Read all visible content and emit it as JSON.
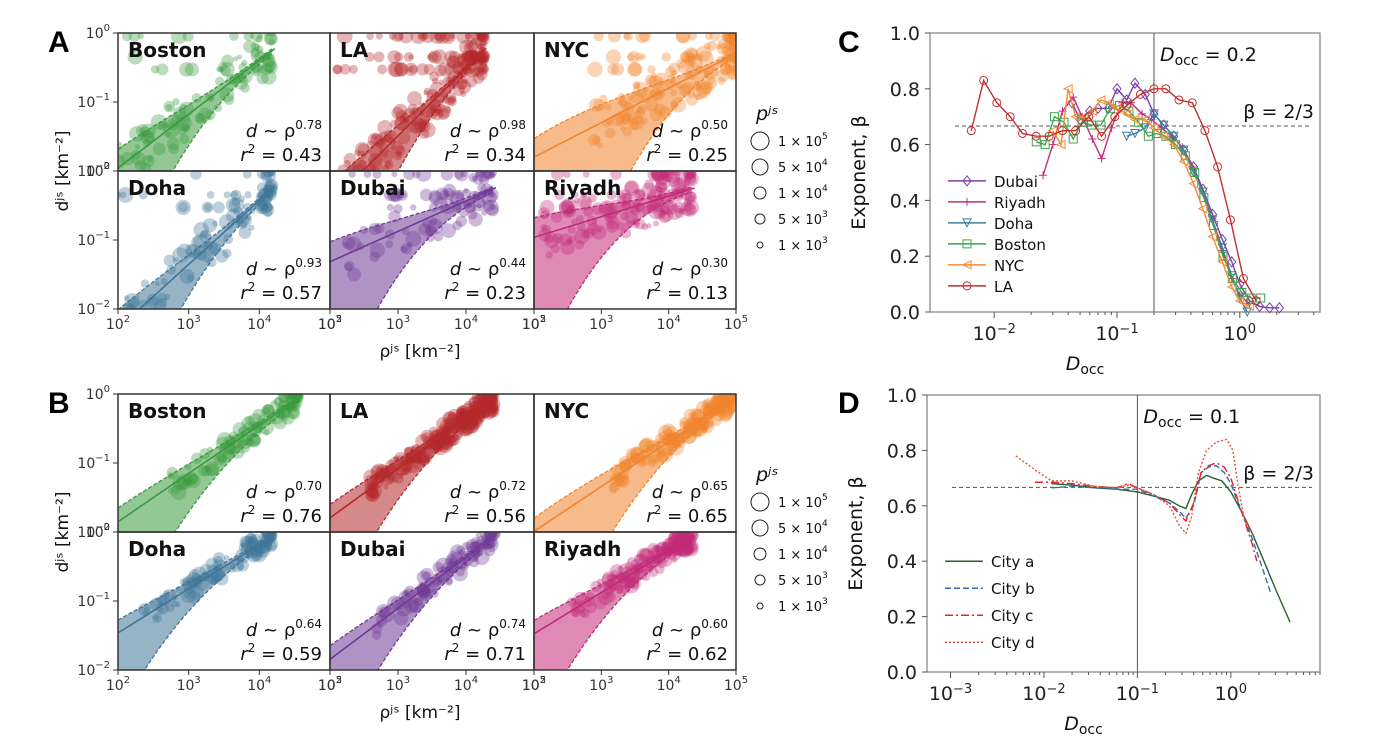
{
  "figure": {
    "panels": {
      "A": {
        "letter": "A"
      },
      "B": {
        "letter": "B"
      },
      "C": {
        "letter": "C"
      },
      "D": {
        "letter": "D"
      }
    }
  },
  "chart_data": [
    {
      "id": "A",
      "type": "scatter",
      "title": "",
      "xlabel": "ρ_j^S [km^-2]",
      "ylabel": "d_j^S [km^-2]",
      "xscale": "log",
      "yscale": "log",
      "xlim": [
        100,
        100000
      ],
      "ylim": [
        0.01,
        1
      ],
      "xticks": [
        "10^2",
        "10^3",
        "10^4",
        "10^5"
      ],
      "yticks": [
        "10^-2",
        "10^-1",
        "10^0"
      ],
      "size_legend": {
        "title": "p_j^S",
        "entries": [
          "1 × 10^5",
          "5 × 10^4",
          "1 × 10^4",
          "5 × 10^3",
          "1 × 10^3"
        ]
      },
      "subplots": [
        {
          "city": "Boston",
          "color": "#3a9a3e",
          "exponent": "0.78",
          "r2": "0.43",
          "xmax": 15000
        },
        {
          "city": "LA",
          "color": "#b5282b",
          "exponent": "0.98",
          "r2": "0.34",
          "xmax": 18000
        },
        {
          "city": "NYC",
          "color": "#f0842c",
          "exponent": "0.50",
          "r2": "0.25",
          "xmax": 120000
        },
        {
          "city": "Doha",
          "color": "#3f7698",
          "exponent": "0.93",
          "r2": "0.57",
          "xmax": 15000
        },
        {
          "city": "Dubai",
          "color": "#6f3a96",
          "exponent": "0.44",
          "r2": "0.23",
          "xmax": 25000
        },
        {
          "city": "Riyadh",
          "color": "#c22a79",
          "exponent": "0.30",
          "r2": "0.13",
          "xmax": 22000
        }
      ]
    },
    {
      "id": "B",
      "type": "scatter",
      "title": "",
      "xlabel": "ρ_j^S [km^-2]",
      "ylabel": "d_j^S [km^-2]",
      "xscale": "log",
      "yscale": "log",
      "xlim": [
        100,
        100000
      ],
      "ylim": [
        0.01,
        1
      ],
      "xticks": [
        "10^2",
        "10^3",
        "10^4",
        "10^5"
      ],
      "yticks": [
        "10^-2",
        "10^-1",
        "10^0"
      ],
      "size_legend": {
        "title": "p_j^S",
        "entries": [
          "1 × 10^5",
          "5 × 10^4",
          "1 × 10^4",
          "5 × 10^3",
          "1 × 10^3"
        ]
      },
      "subplots": [
        {
          "city": "Boston",
          "color": "#3a9a3e",
          "exponent": "0.70",
          "r2": "0.76",
          "xmax": 35000
        },
        {
          "city": "LA",
          "color": "#b5282b",
          "exponent": "0.72",
          "r2": "0.56",
          "xmax": 25000
        },
        {
          "city": "NYC",
          "color": "#f0842c",
          "exponent": "0.65",
          "r2": "0.65",
          "xmax": 90000
        },
        {
          "city": "Doha",
          "color": "#3f7698",
          "exponent": "0.64",
          "r2": "0.59",
          "xmax": 15000
        },
        {
          "city": "Dubai",
          "color": "#6f3a96",
          "exponent": "0.74",
          "r2": "0.71",
          "xmax": 25000
        },
        {
          "city": "Riyadh",
          "color": "#c22a79",
          "exponent": "0.60",
          "r2": "0.62",
          "xmax": 22000
        }
      ]
    },
    {
      "id": "C",
      "type": "line",
      "title": "",
      "xlabel": "D_occ",
      "ylabel": "Exponent, β",
      "xscale": "log",
      "xlim": [
        0.003,
        4.5
      ],
      "ylim": [
        0.0,
        1.0
      ],
      "xticks": [
        "10^-2",
        "10^-1",
        "10^0"
      ],
      "yticks": [
        "0.0",
        "0.2",
        "0.4",
        "0.6",
        "0.8",
        "1.0"
      ],
      "vline": {
        "x": 0.2,
        "label": "D_occ = 0.2"
      },
      "hline": {
        "y": 0.6667,
        "label": "β = 2/3"
      },
      "legend_position": "center-left",
      "series": [
        {
          "name": "Dubai",
          "color": "#7a3fa8",
          "marker": "diamond",
          "x": [
            0.043,
            0.05,
            0.06,
            0.07,
            0.085,
            0.1,
            0.12,
            0.14,
            0.17,
            0.2,
            0.24,
            0.29,
            0.35,
            0.42,
            0.5,
            0.6,
            0.72,
            0.86,
            1.0,
            1.2,
            1.45,
            1.75,
            2.1
          ],
          "y": [
            0.75,
            0.69,
            0.72,
            0.73,
            0.73,
            0.8,
            0.76,
            0.82,
            0.78,
            0.71,
            0.67,
            0.63,
            0.58,
            0.52,
            0.44,
            0.35,
            0.26,
            0.18,
            0.1,
            0.04,
            0.02,
            0.015,
            0.015
          ]
        },
        {
          "name": "Riyadh",
          "color": "#c2307a",
          "marker": "plus",
          "x": [
            0.025,
            0.03,
            0.036,
            0.044,
            0.052,
            0.063,
            0.075,
            0.09,
            0.11,
            0.13,
            0.16,
            0.19,
            0.23,
            0.28,
            0.34,
            0.41,
            0.5,
            0.6,
            0.72,
            0.86,
            1.0,
            1.2
          ],
          "y": [
            0.49,
            0.6,
            0.72,
            0.77,
            0.7,
            0.62,
            0.55,
            0.66,
            0.75,
            0.75,
            0.71,
            0.69,
            0.66,
            0.63,
            0.59,
            0.52,
            0.43,
            0.33,
            0.22,
            0.12,
            0.06,
            0.03
          ]
        },
        {
          "name": "Doha",
          "color": "#3f7ea0",
          "marker": "triangle-down",
          "x": [
            0.12,
            0.14,
            0.17,
            0.2,
            0.24,
            0.29,
            0.35,
            0.42,
            0.5,
            0.6,
            0.72,
            0.86,
            1.0,
            1.15
          ],
          "y": [
            0.63,
            0.64,
            0.66,
            0.71,
            0.67,
            0.63,
            0.58,
            0.5,
            0.43,
            0.33,
            0.23,
            0.13,
            0.05,
            0.0
          ]
        },
        {
          "name": "Boston",
          "color": "#3fa34d",
          "marker": "square",
          "x": [
            0.022,
            0.026,
            0.031,
            0.037,
            0.044,
            0.052,
            0.062,
            0.074,
            0.088,
            0.105,
            0.125,
            0.15,
            0.18,
            0.21,
            0.25,
            0.3,
            0.36,
            0.43,
            0.51,
            0.61,
            0.73,
            0.87,
            1.04,
            1.24,
            1.48
          ],
          "y": [
            0.61,
            0.6,
            0.7,
            0.68,
            0.62,
            0.68,
            0.67,
            0.67,
            0.73,
            0.74,
            0.72,
            0.68,
            0.63,
            0.64,
            0.63,
            0.6,
            0.56,
            0.5,
            0.41,
            0.31,
            0.2,
            0.12,
            0.07,
            0.05,
            0.05
          ]
        },
        {
          "name": "NYC",
          "color": "#f58a34",
          "marker": "triangle-left",
          "x": [
            0.03,
            0.035,
            0.04,
            0.046,
            0.054,
            0.063,
            0.074,
            0.087,
            0.1,
            0.12,
            0.14,
            0.17,
            0.2,
            0.24,
            0.29,
            0.35,
            0.42,
            0.5,
            0.6,
            0.72,
            0.86,
            1.0,
            1.2
          ],
          "y": [
            0.65,
            0.6,
            0.8,
            0.7,
            0.7,
            0.72,
            0.76,
            0.75,
            0.73,
            0.71,
            0.69,
            0.69,
            0.66,
            0.63,
            0.6,
            0.54,
            0.46,
            0.37,
            0.27,
            0.18,
            0.09,
            0.04,
            0.02
          ]
        },
        {
          "name": "LA",
          "color": "#c03030",
          "marker": "circle",
          "x": [
            0.0065,
            0.0082,
            0.0105,
            0.0135,
            0.017,
            0.022,
            0.028,
            0.036,
            0.046,
            0.059,
            0.075,
            0.096,
            0.12,
            0.155,
            0.2,
            0.25,
            0.32,
            0.41,
            0.52,
            0.66,
            0.84,
            1.07,
            1.36
          ],
          "y": [
            0.65,
            0.83,
            0.75,
            0.7,
            0.64,
            0.63,
            0.63,
            0.65,
            0.65,
            0.7,
            0.63,
            0.7,
            0.74,
            0.78,
            0.8,
            0.8,
            0.76,
            0.75,
            0.65,
            0.52,
            0.33,
            0.12,
            0.04
          ]
        }
      ]
    },
    {
      "id": "D",
      "type": "line",
      "title": "",
      "xlabel": "D_occ",
      "ylabel": "Exponent, β",
      "xscale": "log",
      "xlim": [
        0.00056,
        9.0
      ],
      "ylim": [
        0.0,
        1.0
      ],
      "xticks": [
        "10^-3",
        "10^-2",
        "10^-1",
        "10^0"
      ],
      "yticks": [
        "0.0",
        "0.2",
        "0.4",
        "0.6",
        "0.8",
        "1.0"
      ],
      "vline": {
        "x": 0.1,
        "label": "D_occ = 0.1"
      },
      "hline": {
        "y": 0.6667,
        "label": "β = 2/3"
      },
      "legend_position": "lower-left",
      "series": [
        {
          "name": "City a",
          "color": "#2c5e2e",
          "style": "solid",
          "x": [
            0.012,
            0.02,
            0.035,
            0.06,
            0.1,
            0.15,
            0.22,
            0.28,
            0.33,
            0.38,
            0.45,
            0.55,
            0.65,
            0.8,
            1.0,
            1.3,
            1.7,
            2.2,
            3.0,
            4.3
          ],
          "y": [
            0.68,
            0.675,
            0.665,
            0.66,
            0.65,
            0.635,
            0.62,
            0.6,
            0.59,
            0.64,
            0.69,
            0.71,
            0.7,
            0.69,
            0.65,
            0.58,
            0.5,
            0.41,
            0.3,
            0.18
          ]
        },
        {
          "name": "City b",
          "color": "#2f6db5",
          "style": "dashed",
          "x": [
            0.012,
            0.02,
            0.035,
            0.06,
            0.1,
            0.15,
            0.22,
            0.28,
            0.33,
            0.4,
            0.48,
            0.58,
            0.7,
            0.85,
            1.0,
            1.3,
            1.7,
            2.2,
            2.7
          ],
          "y": [
            0.665,
            0.67,
            0.665,
            0.66,
            0.66,
            0.635,
            0.61,
            0.58,
            0.555,
            0.6,
            0.72,
            0.74,
            0.745,
            0.72,
            0.68,
            0.58,
            0.48,
            0.37,
            0.28
          ]
        },
        {
          "name": "City c",
          "color": "#e8202a",
          "style": "dashdot",
          "x": [
            0.008,
            0.012,
            0.02,
            0.035,
            0.06,
            0.08,
            0.1,
            0.15,
            0.22,
            0.28,
            0.33,
            0.4,
            0.48,
            0.58,
            0.7,
            0.85,
            1.0,
            1.3,
            1.7,
            1.9
          ],
          "y": [
            0.685,
            0.685,
            0.68,
            0.67,
            0.665,
            0.68,
            0.665,
            0.64,
            0.61,
            0.57,
            0.545,
            0.61,
            0.72,
            0.745,
            0.755,
            0.74,
            0.7,
            0.58,
            0.46,
            0.4
          ]
        },
        {
          "name": "City d",
          "color": "#e0553a",
          "style": "dotted",
          "x": [
            0.005,
            0.008,
            0.012,
            0.02,
            0.035,
            0.06,
            0.08,
            0.1,
            0.15,
            0.22,
            0.28,
            0.33,
            0.38,
            0.45,
            0.55,
            0.7,
            0.9,
            1.05,
            1.2,
            1.4,
            1.7
          ],
          "y": [
            0.78,
            0.73,
            0.69,
            0.69,
            0.67,
            0.665,
            0.675,
            0.665,
            0.64,
            0.6,
            0.53,
            0.5,
            0.56,
            0.72,
            0.8,
            0.83,
            0.84,
            0.8,
            0.67,
            0.55,
            0.5
          ]
        }
      ]
    }
  ]
}
